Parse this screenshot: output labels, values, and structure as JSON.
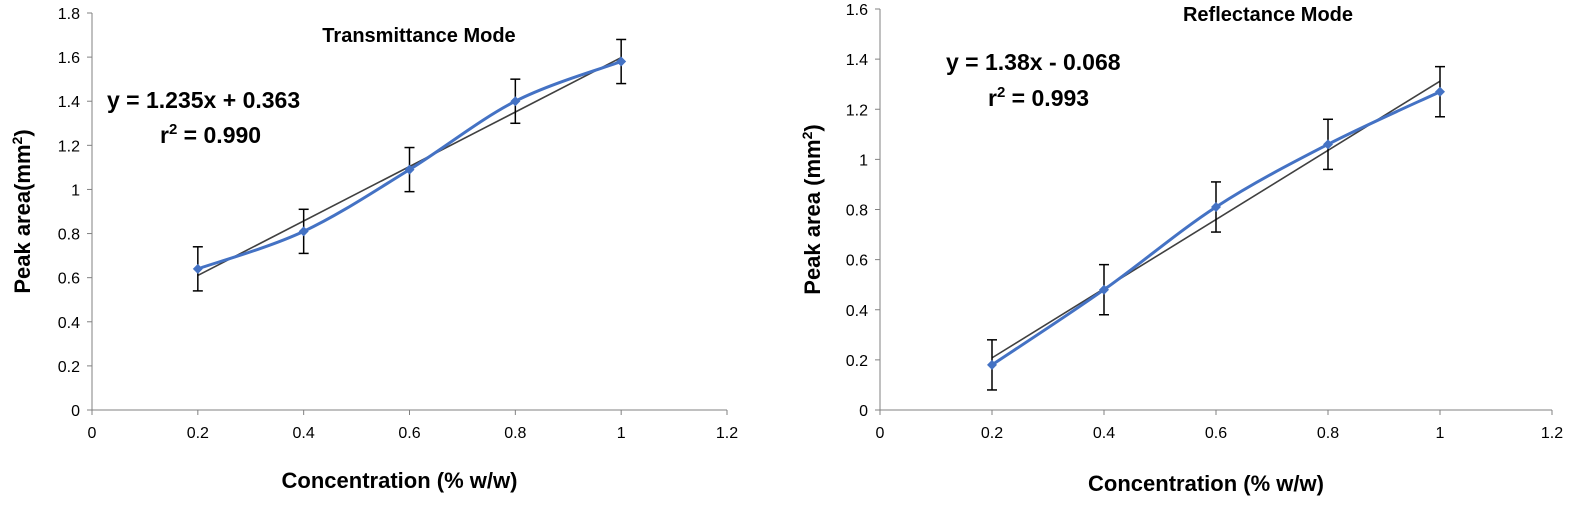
{
  "chart_data": [
    {
      "type": "line",
      "title": "Transmittance Mode",
      "xlabel": "Concentration (% w/w)",
      "ylabel": "Peak area(mm",
      "ylabel_sup": "2",
      "ylabel_close": ")",
      "xlim": [
        0,
        1.2
      ],
      "ylim": [
        0,
        1.8
      ],
      "xticks": [
        0,
        0.2,
        0.4,
        0.6,
        0.8,
        1,
        1.2
      ],
      "xtick_labels": [
        "0",
        "0.2",
        "0.4",
        "0.6",
        "0.8",
        "1",
        "1.2"
      ],
      "yticks": [
        0,
        0.2,
        0.4,
        0.6,
        0.8,
        1,
        1.2,
        1.4,
        1.6,
        1.8
      ],
      "ytick_labels": [
        "0",
        "0.2",
        "0.4",
        "0.6",
        "0.8",
        "1",
        "1.2",
        "1.4",
        "1.6",
        "1.8"
      ],
      "grid": false,
      "series": [
        {
          "name": "Peak area",
          "color": "#4472C4",
          "x": [
            0.2,
            0.4,
            0.6,
            0.8,
            1.0
          ],
          "y": [
            0.64,
            0.81,
            1.09,
            1.4,
            1.58
          ],
          "error": [
            0.1,
            0.1,
            0.1,
            0.1,
            0.1
          ]
        }
      ],
      "trendline": {
        "slope": 1.235,
        "intercept": 0.363,
        "color": "#404040"
      },
      "annotations": {
        "equation": "y = 1.235x + 0.363",
        "r2_prefix": "r",
        "r2_sup": "2",
        "r2_value": " = 0.990"
      }
    },
    {
      "type": "line",
      "title": "Reflectance Mode",
      "xlabel": "Concentration (% w/w)",
      "ylabel": "Peak area (mm",
      "ylabel_sup": "2",
      "ylabel_close": ")",
      "xlim": [
        0,
        1.2
      ],
      "ylim": [
        0,
        1.6
      ],
      "xticks": [
        0,
        0.2,
        0.4,
        0.6,
        0.8,
        1,
        1.2
      ],
      "xtick_labels": [
        "0",
        "0.2",
        "0.4",
        "0.6",
        "0.8",
        "1",
        "1.2"
      ],
      "yticks": [
        0,
        0.2,
        0.4,
        0.6,
        0.8,
        1,
        1.2,
        1.4,
        1.6
      ],
      "ytick_labels": [
        "0",
        "0.2",
        "0.4",
        "0.6",
        "0.8",
        "1",
        "1.2",
        "1.4",
        "1.6"
      ],
      "grid": false,
      "series": [
        {
          "name": "Peak area",
          "color": "#4472C4",
          "x": [
            0.2,
            0.4,
            0.6,
            0.8,
            1.0
          ],
          "y": [
            0.18,
            0.48,
            0.81,
            1.06,
            1.27
          ],
          "error": [
            0.1,
            0.1,
            0.1,
            0.1,
            0.1
          ]
        }
      ],
      "trendline": {
        "slope": 1.38,
        "intercept": -0.068,
        "color": "#404040"
      },
      "annotations": {
        "equation": "y = 1.38x - 0.068",
        "r2_prefix": "r",
        "r2_sup": "2",
        "r2_value": " = 0.993"
      }
    }
  ]
}
